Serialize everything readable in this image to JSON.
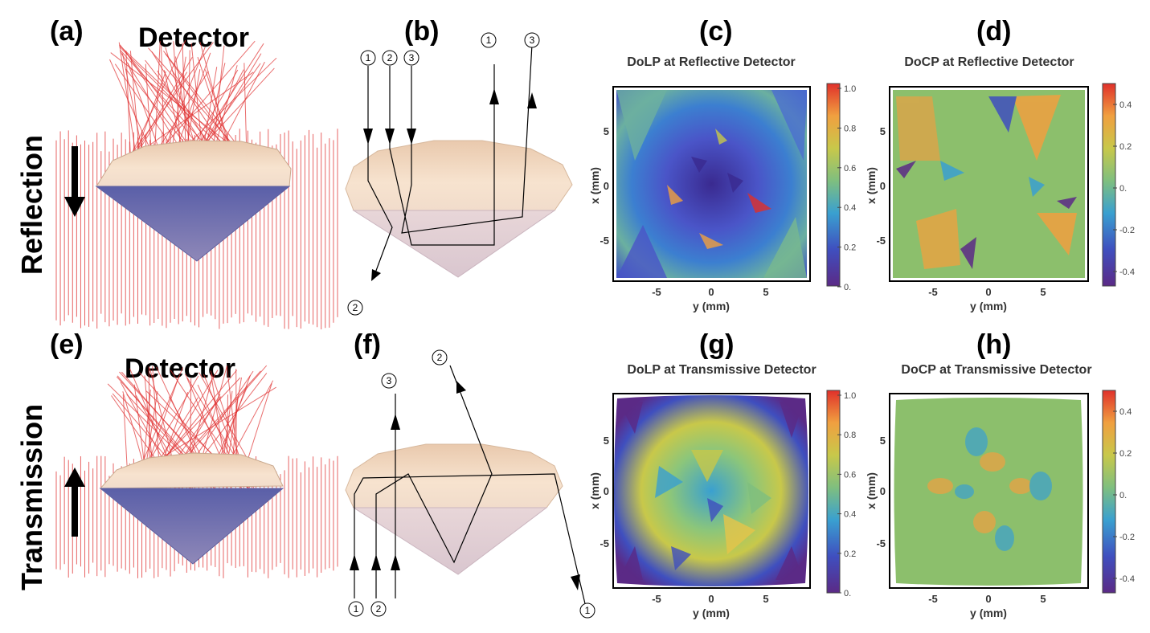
{
  "panels": {
    "a": {
      "letter": "(a)",
      "label": "Detector"
    },
    "b": {
      "letter": "(b)"
    },
    "c": {
      "letter": "(c)",
      "title": "DoLP at Reflective Detector"
    },
    "d": {
      "letter": "(d)",
      "title": "DoCP at Reflective Detector"
    },
    "e": {
      "letter": "(e)",
      "label": "Detector"
    },
    "f": {
      "letter": "(f)"
    },
    "g": {
      "letter": "(g)",
      "title": "DoLP at Transmissive Detector"
    },
    "h": {
      "letter": "(h)",
      "title": "DoCP at Transmissive Detector"
    }
  },
  "row_labels": {
    "top": "Reflection",
    "bottom": "Transmission"
  },
  "maps": {
    "xlabel": "y (mm)",
    "ylabel": "x (mm)",
    "xticks": [
      "-5",
      "0",
      "5"
    ],
    "yticks": [
      "5",
      "0",
      "-5"
    ],
    "dolp_colorbar": [
      "1.0",
      "0.8",
      "0.6",
      "0.4",
      "0.2",
      "0."
    ],
    "docp_colorbar": [
      "0.4",
      "0.2",
      "0.",
      "-0.2",
      "-0.4"
    ]
  },
  "ray_markers": {
    "b_top": [
      "1",
      "2",
      "3"
    ],
    "b_exit": [
      "1",
      "3"
    ],
    "b_bottom": "2",
    "f_top_left": "3",
    "f_top_right": "2",
    "f_bottom": [
      "1",
      "2"
    ],
    "f_bottom_right": "1"
  },
  "colors": {
    "ray": "#e03030",
    "gem_top": "#f5d9bd",
    "gem_bottom": "#6a6db0",
    "spectral": [
      "#5b2a86",
      "#3f4fbf",
      "#3aa0d0",
      "#7fbf7f",
      "#c8c84a",
      "#f0a040",
      "#e0302a"
    ]
  }
}
